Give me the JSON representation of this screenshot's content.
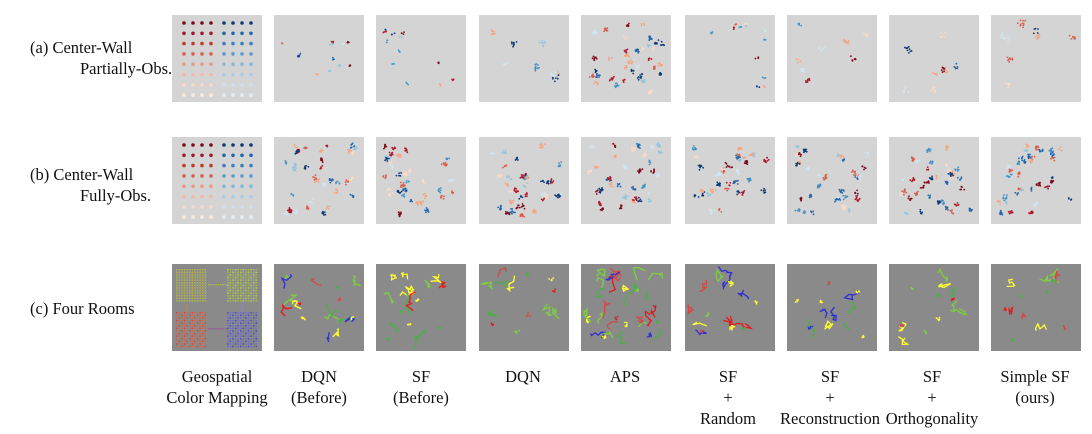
{
  "rows": [
    {
      "label_line1": "(a) Center-Wall",
      "label_line2": "Partially-Obs.",
      "environment": "center-wall"
    },
    {
      "label_line1": "(b) Center-Wall",
      "label_line2": "Fully-Obs.",
      "environment": "center-wall"
    },
    {
      "label_line1": "(c) Four Rooms",
      "label_line2": "",
      "environment": "four-rooms"
    }
  ],
  "columns": [
    {
      "lines": [
        "Geospatial",
        "Color Mapping"
      ]
    },
    {
      "lines": [
        "DQN",
        "(Before)"
      ]
    },
    {
      "lines": [
        "SF",
        "(Before)"
      ]
    },
    {
      "lines": [
        "DQN"
      ]
    },
    {
      "lines": [
        "APS"
      ]
    },
    {
      "lines": [
        "SF",
        "+",
        "Random"
      ]
    },
    {
      "lines": [
        "SF",
        "+",
        "Reconstruction"
      ]
    },
    {
      "lines": [
        "SF",
        "+",
        "Orthogonality"
      ]
    },
    {
      "lines": [
        "Simple SF",
        "(ours)"
      ]
    }
  ],
  "colors": {
    "panel_background_light": "#d4d4d4",
    "panel_background_dark": "#8a8a8a",
    "center_wall_palette": [
      "#7a0a1c",
      "#b2182b",
      "#d6604d",
      "#f4a582",
      "#fddbc7",
      "#d1e5f0",
      "#92c5de",
      "#4393c3",
      "#2166ac",
      "#0d3a78"
    ],
    "four_rooms_palette": [
      "#e41a1c",
      "#4daf4a",
      "#ffff33",
      "#3030d0",
      "#d04a4a",
      "#7cd040"
    ]
  }
}
